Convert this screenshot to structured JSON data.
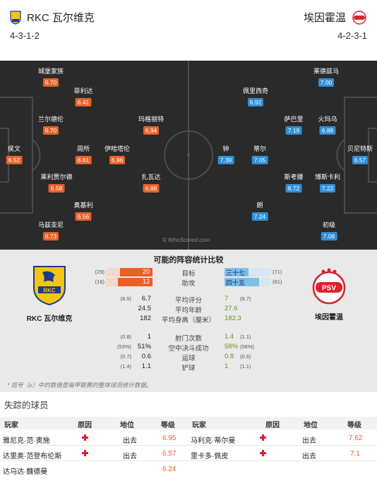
{
  "header": {
    "home_team": "RKC 瓦尔维克",
    "away_team": "埃因霍温",
    "home_formation": "4-3-1-2",
    "away_formation": "4-2-3-1"
  },
  "pitch": {
    "watermark": "© WhoScored.com",
    "home_players": [
      {
        "name": "城堡家族",
        "rating": "6.70"
      },
      {
        "name": "菲利达",
        "rating": "6.41"
      },
      {
        "name": "兰尔德伦",
        "rating": "6.70"
      },
      {
        "name": "玛格丽特",
        "rating": "6.94"
      },
      {
        "name": "侯文",
        "rating": "6.52"
      },
      {
        "name": "周所",
        "rating": "6.61"
      },
      {
        "name": "伊哈塔伦",
        "rating": "6.96"
      },
      {
        "name": "莱利贾尔德",
        "rating": "6.58"
      },
      {
        "name": "扎瓦达",
        "rating": "6.88"
      },
      {
        "name": "奥基利",
        "rating": "6.56"
      },
      {
        "name": "马兹亚尼",
        "rating": "6.73"
      }
    ],
    "away_players": [
      {
        "name": "莱德兹马",
        "rating": "7.00"
      },
      {
        "name": "佩里西奇",
        "rating": "6.92"
      },
      {
        "name": "萨巴里",
        "rating": "7.19"
      },
      {
        "name": "火玛乌",
        "rating": "6.88"
      },
      {
        "name": "钟",
        "rating": "7.39"
      },
      {
        "name": "蒂尔",
        "rating": "7.05"
      },
      {
        "name": "贝尼特斯",
        "rating": "6.57"
      },
      {
        "name": "斯考滕",
        "rating": "6.72"
      },
      {
        "name": "博斯卡利",
        "rating": "7.22"
      },
      {
        "name": "朗",
        "rating": "7.24"
      },
      {
        "name": "初级",
        "rating": "7.08"
      }
    ]
  },
  "comparison": {
    "title": "可能的阵容统计比较",
    "home_name": "RKC 瓦尔维克",
    "away_name": "埃因霍温",
    "bar_rows": [
      {
        "label": "目标",
        "home": "20",
        "home_avg": "(29)",
        "home_frac": 0.69,
        "away": "三十七",
        "away_avg": "(71)",
        "away_frac": 0.52
      },
      {
        "label": "助攻",
        "home": "12",
        "home_avg": "(16)",
        "home_frac": 0.75,
        "away": "四十五",
        "away_avg": "(61)",
        "away_frac": 0.74
      }
    ],
    "rows": [
      {
        "label": "平均评分",
        "home": "6.7",
        "home_avg": "(6.5)",
        "away": "7",
        "away_avg": "(6.7)"
      },
      {
        "label": "平均年龄",
        "home": "24.5",
        "home_avg": "",
        "away": "27.6",
        "away_avg": ""
      },
      {
        "label": "平均身高（厘米）",
        "home": "182",
        "home_avg": "",
        "away": "182.3",
        "away_avg": ""
      },
      {
        "label": "射门次数",
        "home": "1",
        "home_avg": "(0.8)",
        "away": "1.4",
        "away_avg": "(1.1)"
      },
      {
        "label": "空中决斗成功",
        "home": "51%",
        "home_avg": "(53%)",
        "away": "58%",
        "away_avg": "(56%)"
      },
      {
        "label": "运球",
        "home": "0.6",
        "home_avg": "(0.7)",
        "away": "0.8",
        "away_avg": "(0.6)"
      },
      {
        "label": "铲球",
        "home": "1.1",
        "home_avg": "(1.4)",
        "away": "1",
        "away_avg": "(1.1)"
      }
    ],
    "footnote": "* 括号（x）中的数值是每甲联赛的整体球员统计数据。"
  },
  "missing": {
    "title": "失踪的球员",
    "columns": [
      "玩家",
      "原因",
      "地位",
      "等级"
    ],
    "left": [
      {
        "player": "雅尼克·范·奥施",
        "status": "出去",
        "rating": "6.95"
      },
      {
        "player": "达里奥·范登布伦斯",
        "status": "出去",
        "rating": "6.57"
      },
      {
        "player": "达乌达·魏德曼",
        "status": "出去",
        "rating": "6.24"
      }
    ],
    "right": [
      {
        "player": "马利克·蒂尔曼",
        "status": "出去",
        "rating": "7.62"
      },
      {
        "player": "里卡多·佩皮",
        "status": "出去",
        "rating": "7.1"
      }
    ]
  },
  "colors": {
    "home_accent": "#e8602a",
    "away_accent": "#2f8fd8",
    "pitch": "#2a2a2a",
    "injury": "#d9232e"
  }
}
